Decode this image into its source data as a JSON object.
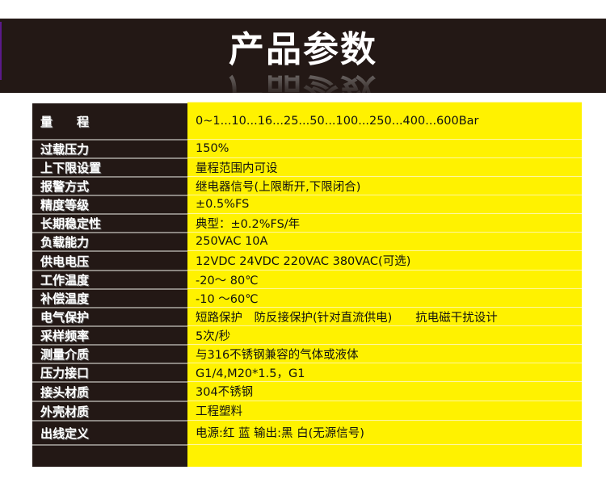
{
  "header": {
    "title": "产品参数"
  },
  "colors": {
    "banner": "#231815",
    "label_bg": "#231815",
    "value_bg": "#fff200"
  },
  "specs": [
    {
      "label": "量　　程",
      "value": "0~1...10...16...25...50...100...250...400...600Bar"
    },
    {
      "label": "过载压力",
      "value": "150%"
    },
    {
      "label": "上下限设置",
      "value": "量程范围内可设"
    },
    {
      "label": "报警方式",
      "value": "继电器信号(上限断开,下限闭合)"
    },
    {
      "label": "精度等级",
      "value": "±0.5%FS"
    },
    {
      "label": "长期稳定性",
      "value": "典型：±0.2%FS/年"
    },
    {
      "label": "负载能力",
      "value": "250VAC 10A"
    },
    {
      "label": "供电电压",
      "value": "12VDC 24VDC  220VAC 380VAC(可选)"
    },
    {
      "label": "工作温度",
      "value": "-20～ 80℃"
    },
    {
      "label": "补偿温度",
      "value": "-10 ～60℃"
    },
    {
      "label": "电气保护",
      "value": "短路保护　防反接保护(针对直流供电)　　抗电磁干扰设计"
    },
    {
      "label": "采样频率",
      "value": "5次/秒"
    },
    {
      "label": "测量介质",
      "value": "与316不锈钢兼容的气体或液体"
    },
    {
      "label": "压力接口",
      "value": "G1/4,M20*1.5，G1"
    },
    {
      "label": "接头材质",
      "value": "304不锈钢"
    },
    {
      "label": "外壳材质",
      "value": "工程塑料"
    },
    {
      "label": "出线定义",
      "value": "电源:红 蓝  输出:黑 白(无源信号)"
    }
  ]
}
